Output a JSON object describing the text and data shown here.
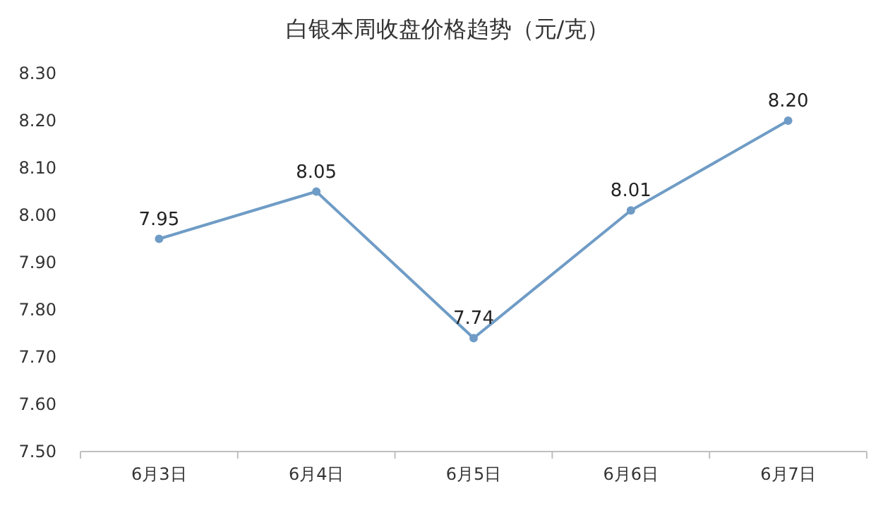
{
  "chart_data": {
    "type": "line",
    "title": "白银本周收盘价格趋势（元/克）",
    "categories": [
      "6月3日",
      "6月4日",
      "6月5日",
      "6月6日",
      "6月7日"
    ],
    "series": [
      {
        "color": "#6f9cc6",
        "values": [
          7.95,
          8.05,
          7.74,
          8.01,
          8.2
        ],
        "value_labels": [
          "7.95",
          "8.05",
          "7.74",
          "8.01",
          "8.20"
        ]
      }
    ],
    "ylim": [
      7.5,
      8.3
    ],
    "yticks": [
      {
        "value": 7.5,
        "label": "7.50"
      },
      {
        "value": 7.6,
        "label": "7.60"
      },
      {
        "value": 7.7,
        "label": "7.70"
      },
      {
        "value": 7.8,
        "label": "7.80"
      },
      {
        "value": 7.9,
        "label": "7.90"
      },
      {
        "value": 8.0,
        "label": "8.00"
      },
      {
        "value": 8.1,
        "label": "8.10"
      },
      {
        "value": 8.2,
        "label": "8.20"
      },
      {
        "value": 8.3,
        "label": "8.30"
      }
    ],
    "marker": "circle",
    "line_style": "solid"
  }
}
